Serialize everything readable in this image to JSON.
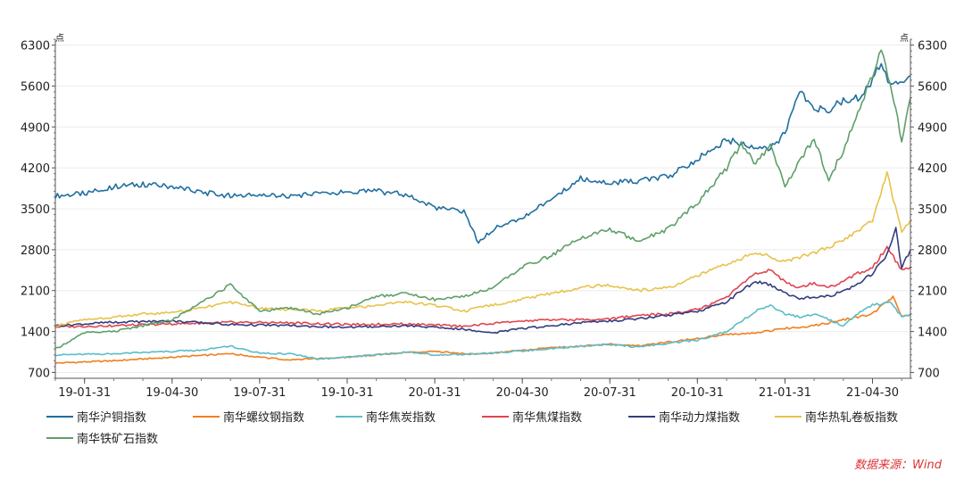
{
  "chart_data": {
    "type": "line",
    "title": "",
    "y_unit_left": "点",
    "y_unit_right": "点",
    "ylim": [
      600,
      6400
    ],
    "y_ticks": [
      700,
      1400,
      2100,
      2800,
      3500,
      4200,
      4900,
      5600,
      6300
    ],
    "y_tick_labels": [
      "700",
      "1400",
      "2100",
      "2800",
      "3500",
      "4200",
      "4900",
      "5600",
      "6300"
    ],
    "x_range": [
      0,
      29.3
    ],
    "x_ticks": [
      1,
      4,
      7,
      10,
      13,
      16,
      19,
      22,
      25,
      28
    ],
    "x_tick_labels": [
      "19-01-31",
      "19-04-30",
      "19-07-31",
      "19-10-31",
      "20-01-31",
      "20-04-30",
      "20-07-31",
      "20-10-31",
      "21-01-31",
      "21-04-30"
    ],
    "x_unit": "months since 2019-01-01",
    "series": [
      {
        "name": "南华沪铜指数",
        "color": "#1f6f9f",
        "x": [
          0,
          1,
          2,
          3,
          4,
          5,
          6,
          7,
          8,
          9,
          10,
          11,
          12,
          13,
          14,
          14.5,
          15,
          15.5,
          16,
          17,
          18,
          19,
          20,
          21,
          22,
          23,
          24,
          24.5,
          25,
          25.5,
          26,
          26.5,
          27,
          27.5,
          28,
          28.3,
          28.6,
          29,
          29.3
        ],
        "values": [
          3720,
          3760,
          3880,
          3920,
          3880,
          3780,
          3720,
          3730,
          3720,
          3760,
          3780,
          3800,
          3740,
          3520,
          3450,
          2920,
          3150,
          3250,
          3350,
          3650,
          4020,
          3940,
          3980,
          4050,
          4350,
          4680,
          4550,
          4520,
          4800,
          5500,
          5200,
          5200,
          5350,
          5400,
          5700,
          6000,
          5600,
          5700,
          5780
        ]
      },
      {
        "name": "南华螺纹钢指数",
        "color": "#f07f1e",
        "x": [
          0,
          2,
          4,
          6,
          7,
          8,
          10,
          12,
          13,
          14,
          15,
          16,
          17,
          18,
          19,
          20,
          21,
          22,
          23,
          24,
          25,
          26,
          27,
          28,
          28.7,
          29,
          29.3
        ],
        "values": [
          860,
          900,
          960,
          1020,
          960,
          920,
          960,
          1040,
          1060,
          1020,
          1030,
          1080,
          1120,
          1150,
          1180,
          1150,
          1220,
          1280,
          1350,
          1380,
          1450,
          1500,
          1600,
          1700,
          2000,
          1650,
          1680
        ]
      },
      {
        "name": "南华焦炭指数",
        "color": "#5bbdc8",
        "x": [
          0,
          2,
          4,
          5,
          6,
          7,
          8,
          9,
          10,
          11,
          12,
          13,
          14,
          15,
          16,
          17,
          18,
          19,
          20,
          21,
          22,
          23,
          24,
          24.5,
          25,
          25.5,
          26,
          26.5,
          27,
          27.5,
          28,
          28.6,
          29,
          29.3
        ],
        "values": [
          1000,
          1020,
          1060,
          1080,
          1150,
          1030,
          1020,
          930,
          960,
          1000,
          1050,
          1000,
          1010,
          1030,
          1070,
          1100,
          1150,
          1180,
          1130,
          1200,
          1250,
          1400,
          1750,
          1850,
          1700,
          1650,
          1700,
          1600,
          1500,
          1700,
          1850,
          1900,
          1650,
          1700
        ]
      },
      {
        "name": "南华焦煤指数",
        "color": "#e0454f",
        "x": [
          0,
          2,
          4,
          6,
          8,
          10,
          12,
          14,
          15,
          16,
          17,
          18,
          19,
          20,
          21,
          22,
          23,
          24,
          24.5,
          25,
          25.5,
          26,
          26.5,
          27,
          27.5,
          28,
          28.5,
          29,
          29.3
        ],
        "values": [
          1480,
          1500,
          1530,
          1560,
          1550,
          1520,
          1530,
          1490,
          1540,
          1580,
          1600,
          1600,
          1620,
          1680,
          1700,
          1780,
          1980,
          2400,
          2460,
          2250,
          2150,
          2230,
          2150,
          2250,
          2400,
          2500,
          2850,
          2450,
          2500
        ]
      },
      {
        "name": "南华动力煤指数",
        "color": "#333d7e",
        "x": [
          0,
          2,
          4,
          6,
          8,
          10,
          12,
          14,
          15,
          16,
          17,
          18,
          19,
          20,
          21,
          22,
          23,
          23.5,
          24,
          24.5,
          25,
          25.5,
          26,
          26.5,
          27,
          27.5,
          28,
          28.5,
          28.8,
          29,
          29.3
        ],
        "values": [
          1500,
          1560,
          1580,
          1520,
          1500,
          1470,
          1500,
          1440,
          1380,
          1450,
          1500,
          1550,
          1580,
          1620,
          1680,
          1750,
          1900,
          2100,
          2250,
          2200,
          2050,
          1950,
          2000,
          2000,
          2100,
          2200,
          2400,
          2700,
          3150,
          2500,
          2800
        ]
      },
      {
        "name": "南华热轧卷板指数",
        "color": "#e8c24a",
        "x": [
          0,
          1,
          2,
          3,
          4,
          5,
          6,
          7,
          8,
          9,
          10,
          11,
          12,
          13,
          14,
          15,
          16,
          17,
          18,
          19,
          20,
          21,
          22,
          23,
          24,
          25,
          26,
          27,
          28,
          28.5,
          29,
          29.3
        ],
        "values": [
          1500,
          1600,
          1650,
          1700,
          1720,
          1800,
          1900,
          1800,
          1780,
          1750,
          1800,
          1850,
          1900,
          1850,
          1750,
          1850,
          1950,
          2050,
          2150,
          2200,
          2100,
          2150,
          2350,
          2550,
          2750,
          2600,
          2750,
          2950,
          3300,
          4100,
          3100,
          3300
        ]
      },
      {
        "name": "南华铁矿石指数",
        "color": "#5e9f69",
        "x": [
          0,
          1,
          2,
          3,
          4,
          5,
          6,
          7,
          8,
          9,
          10,
          11,
          12,
          13,
          14,
          15,
          16,
          17,
          18,
          19,
          20,
          21,
          22,
          23,
          23.5,
          24,
          24.5,
          25,
          25.5,
          26,
          26.5,
          27,
          27.5,
          28,
          28.3,
          28.6,
          29,
          29.3
        ],
        "values": [
          1100,
          1380,
          1400,
          1500,
          1600,
          1900,
          2200,
          1750,
          1800,
          1700,
          1800,
          2000,
          2050,
          1950,
          2000,
          2150,
          2500,
          2700,
          3000,
          3150,
          2950,
          3150,
          3600,
          4200,
          4600,
          4250,
          4600,
          3900,
          4300,
          4700,
          4000,
          4500,
          5100,
          5800,
          6200,
          5600,
          4700,
          5400
        ]
      }
    ],
    "legend": {
      "placement": "bottom",
      "items": [
        "南华沪铜指数",
        "南华螺纹钢指数",
        "南华焦炭指数",
        "南华焦煤指数",
        "南华动力煤指数",
        "南华热轧卷板指数",
        "南华铁矿石指数"
      ]
    },
    "source": "数据来源：Wind",
    "grid": true
  }
}
